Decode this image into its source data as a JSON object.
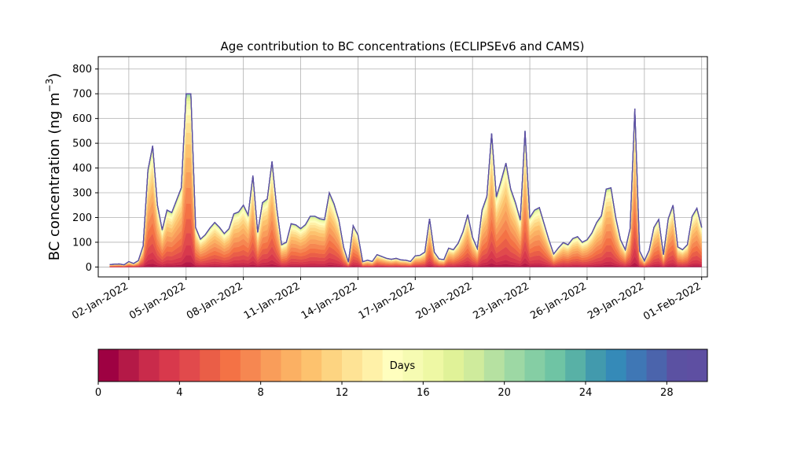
{
  "chart_data": {
    "type": "area",
    "title": "Age contribution to BC concentrations (ECLIPSEv6 and CAMS)",
    "ylabel_main": "BC concentration (ng m",
    "ylabel_sup": "−3",
    "ylabel_close": ")",
    "xlabel": "",
    "ylim": [
      -40,
      850
    ],
    "yticks": [
      0,
      100,
      200,
      300,
      400,
      500,
      600,
      700,
      800
    ],
    "xlim": [
      -0.6,
      31.3
    ],
    "x_start": "31-Dec-2021",
    "x_end": "31-Jan-2022",
    "x_step_days": 0.25,
    "xticks": [
      {
        "day": 1,
        "label": "02-Jan-2022"
      },
      {
        "day": 4,
        "label": "05-Jan-2022"
      },
      {
        "day": 7,
        "label": "08-Jan-2022"
      },
      {
        "day": 10,
        "label": "11-Jan-2022"
      },
      {
        "day": 13,
        "label": "14-Jan-2022"
      },
      {
        "day": 16,
        "label": "17-Jan-2022"
      },
      {
        "day": 19,
        "label": "20-Jan-2022"
      },
      {
        "day": 22,
        "label": "23-Jan-2022"
      },
      {
        "day": 25,
        "label": "26-Jan-2022"
      },
      {
        "day": 28,
        "label": "29-Jan-2022"
      },
      {
        "day": 31,
        "label": "01-Feb-2022"
      }
    ],
    "grid": true,
    "total_keypoints": [
      [
        0,
        10
      ],
      [
        0.4,
        12
      ],
      [
        0.7,
        13
      ],
      [
        0.8,
        5
      ],
      [
        1,
        22
      ],
      [
        1.2,
        15
      ],
      [
        1.4,
        12
      ],
      [
        1.6,
        40
      ],
      [
        1.8,
        100
      ],
      [
        1.9,
        200
      ],
      [
        2.0,
        390
      ],
      [
        2.1,
        410
      ],
      [
        2.2,
        440
      ],
      [
        2.25,
        490
      ],
      [
        2.35,
        420
      ],
      [
        2.5,
        250
      ],
      [
        2.6,
        180
      ],
      [
        2.75,
        150
      ],
      [
        2.9,
        180
      ],
      [
        3.0,
        230
      ],
      [
        3.1,
        180
      ],
      [
        3.2,
        200
      ],
      [
        3.3,
        240
      ],
      [
        3.5,
        270
      ],
      [
        3.7,
        310
      ],
      [
        3.8,
        330
      ],
      [
        3.9,
        450
      ],
      [
        4.0,
        700
      ],
      [
        4.1,
        780
      ],
      [
        4.15,
        810
      ],
      [
        4.25,
        700
      ],
      [
        4.35,
        450
      ],
      [
        4.4,
        200
      ],
      [
        4.6,
        120
      ],
      [
        4.8,
        110
      ],
      [
        5.0,
        130
      ],
      [
        5.1,
        150
      ],
      [
        5.3,
        160
      ],
      [
        5.5,
        180
      ],
      [
        5.7,
        170
      ],
      [
        5.8,
        150
      ],
      [
        6.0,
        135
      ],
      [
        6.2,
        140
      ],
      [
        6.4,
        200
      ],
      [
        6.6,
        230
      ],
      [
        6.8,
        220
      ],
      [
        7.0,
        250
      ],
      [
        7.1,
        290
      ],
      [
        7.2,
        200
      ],
      [
        7.3,
        220
      ],
      [
        7.4,
        280
      ],
      [
        7.5,
        370
      ],
      [
        7.6,
        250
      ],
      [
        7.7,
        140
      ],
      [
        7.8,
        140
      ],
      [
        7.9,
        190
      ],
      [
        8.0,
        260
      ],
      [
        8.1,
        250
      ],
      [
        8.2,
        220
      ],
      [
        8.3,
        330
      ],
      [
        8.4,
        320
      ],
      [
        8.55,
        480
      ],
      [
        8.65,
        350
      ],
      [
        8.8,
        180
      ],
      [
        9.0,
        90
      ],
      [
        9.1,
        60
      ],
      [
        9.2,
        90
      ],
      [
        9.3,
        110
      ],
      [
        9.5,
        175
      ],
      [
        9.6,
        170
      ],
      [
        9.8,
        170
      ],
      [
        10.0,
        155
      ],
      [
        10.1,
        175
      ],
      [
        10.3,
        170
      ],
      [
        10.5,
        205
      ],
      [
        10.7,
        200
      ],
      [
        10.8,
        210
      ],
      [
        11.0,
        195
      ],
      [
        11.1,
        180
      ],
      [
        11.3,
        195
      ],
      [
        11.45,
        290
      ],
      [
        11.6,
        320
      ],
      [
        11.7,
        300
      ],
      [
        11.8,
        210
      ],
      [
        12.0,
        190
      ],
      [
        12.1,
        150
      ],
      [
        12.2,
        100
      ],
      [
        12.4,
        20
      ],
      [
        12.5,
        20
      ],
      [
        12.7,
        150
      ],
      [
        12.85,
        200
      ],
      [
        13.0,
        130
      ],
      [
        13.1,
        60
      ],
      [
        13.2,
        20
      ],
      [
        13.4,
        25
      ],
      [
        13.6,
        30
      ],
      [
        13.8,
        20
      ],
      [
        14.0,
        50
      ],
      [
        14.2,
        45
      ],
      [
        14.4,
        35
      ],
      [
        14.6,
        35
      ],
      [
        14.8,
        30
      ],
      [
        15.0,
        35
      ],
      [
        15.2,
        30
      ],
      [
        15.4,
        25
      ],
      [
        15.6,
        30
      ],
      [
        15.8,
        20
      ],
      [
        16.0,
        45
      ],
      [
        16.2,
        50
      ],
      [
        16.4,
        40
      ],
      [
        16.6,
        80
      ],
      [
        16.7,
        290
      ],
      [
        16.8,
        100
      ],
      [
        17.0,
        60
      ],
      [
        17.2,
        30
      ],
      [
        17.4,
        40
      ],
      [
        17.6,
        20
      ],
      [
        17.8,
        95
      ],
      [
        18.0,
        70
      ],
      [
        18.2,
        110
      ],
      [
        18.4,
        55
      ],
      [
        18.6,
        230
      ],
      [
        18.8,
        205
      ],
      [
        19.0,
        120
      ],
      [
        19.2,
        40
      ],
      [
        19.4,
        180
      ],
      [
        19.6,
        280
      ],
      [
        19.7,
        270
      ],
      [
        19.8,
        300
      ],
      [
        19.9,
        460
      ],
      [
        20.0,
        540
      ],
      [
        20.1,
        420
      ],
      [
        20.2,
        250
      ],
      [
        20.35,
        350
      ],
      [
        20.5,
        350
      ],
      [
        20.6,
        400
      ],
      [
        20.75,
        420
      ],
      [
        20.9,
        410
      ],
      [
        21.1,
        220
      ],
      [
        21.2,
        300
      ],
      [
        21.3,
        220
      ],
      [
        21.4,
        430
      ],
      [
        21.5,
        190
      ],
      [
        21.6,
        320
      ],
      [
        21.7,
        500
      ],
      [
        21.8,
        600
      ],
      [
        21.85,
        610
      ],
      [
        21.95,
        400
      ],
      [
        22.0,
        200
      ],
      [
        22.1,
        280
      ],
      [
        22.2,
        260
      ],
      [
        22.3,
        200
      ],
      [
        22.4,
        100
      ],
      [
        22.5,
        240
      ],
      [
        22.6,
        230
      ],
      [
        22.7,
        170
      ],
      [
        22.8,
        180
      ],
      [
        23.0,
        110
      ],
      [
        23.2,
        50
      ],
      [
        23.4,
        60
      ],
      [
        23.6,
        95
      ],
      [
        23.8,
        100
      ],
      [
        24.0,
        90
      ],
      [
        24.2,
        105
      ],
      [
        24.4,
        145
      ],
      [
        24.6,
        100
      ],
      [
        24.8,
        100
      ],
      [
        25.0,
        110
      ],
      [
        25.2,
        130
      ],
      [
        25.4,
        160
      ],
      [
        25.6,
        200
      ],
      [
        25.8,
        210
      ],
      [
        25.9,
        250
      ],
      [
        26.1,
        380
      ],
      [
        26.3,
        300
      ],
      [
        26.5,
        200
      ],
      [
        26.7,
        150
      ],
      [
        26.8,
        70
      ],
      [
        27.0,
        70
      ],
      [
        27.2,
        90
      ],
      [
        27.4,
        350
      ],
      [
        27.5,
        640
      ],
      [
        27.6,
        300
      ],
      [
        27.7,
        100
      ],
      [
        27.8,
        30
      ],
      [
        28.0,
        25
      ],
      [
        28.2,
        30
      ],
      [
        28.4,
        180
      ],
      [
        28.6,
        140
      ],
      [
        28.8,
        210
      ],
      [
        28.9,
        120
      ],
      [
        29.0,
        50
      ],
      [
        29.1,
        110
      ],
      [
        29.2,
        160
      ],
      [
        29.4,
        300
      ],
      [
        29.5,
        250
      ],
      [
        29.6,
        100
      ],
      [
        29.8,
        75
      ],
      [
        30.0,
        70
      ],
      [
        30.2,
        80
      ],
      [
        30.4,
        120
      ],
      [
        30.6,
        290
      ],
      [
        30.8,
        220
      ],
      [
        30.9,
        100
      ],
      [
        31.0,
        160
      ]
    ],
    "age_colorbar": {
      "label": "Days",
      "range": [
        0,
        30
      ],
      "bins": 30,
      "ticks": [
        0,
        4,
        8,
        12,
        16,
        20,
        24,
        28
      ],
      "colors": [
        "#9e0142",
        "#b41947",
        "#c92b4b",
        "#d8394c",
        "#e14a4c",
        "#ea5e47",
        "#f47245",
        "#f68751",
        "#f99d5a",
        "#fbb063",
        "#fdc26e",
        "#fdd481",
        "#fee395",
        "#fff1a8",
        "#fffebe",
        "#f6fbb2",
        "#eef8a4",
        "#e0f298",
        "#cfeb9c",
        "#b6e1a1",
        "#9dd8a4",
        "#85cea4",
        "#6fc4a4",
        "#58b1a6",
        "#429aad",
        "#358ab8",
        "#3f77b5",
        "#4b64ac",
        "#5b51a2",
        "#5e4fa2"
      ]
    }
  }
}
